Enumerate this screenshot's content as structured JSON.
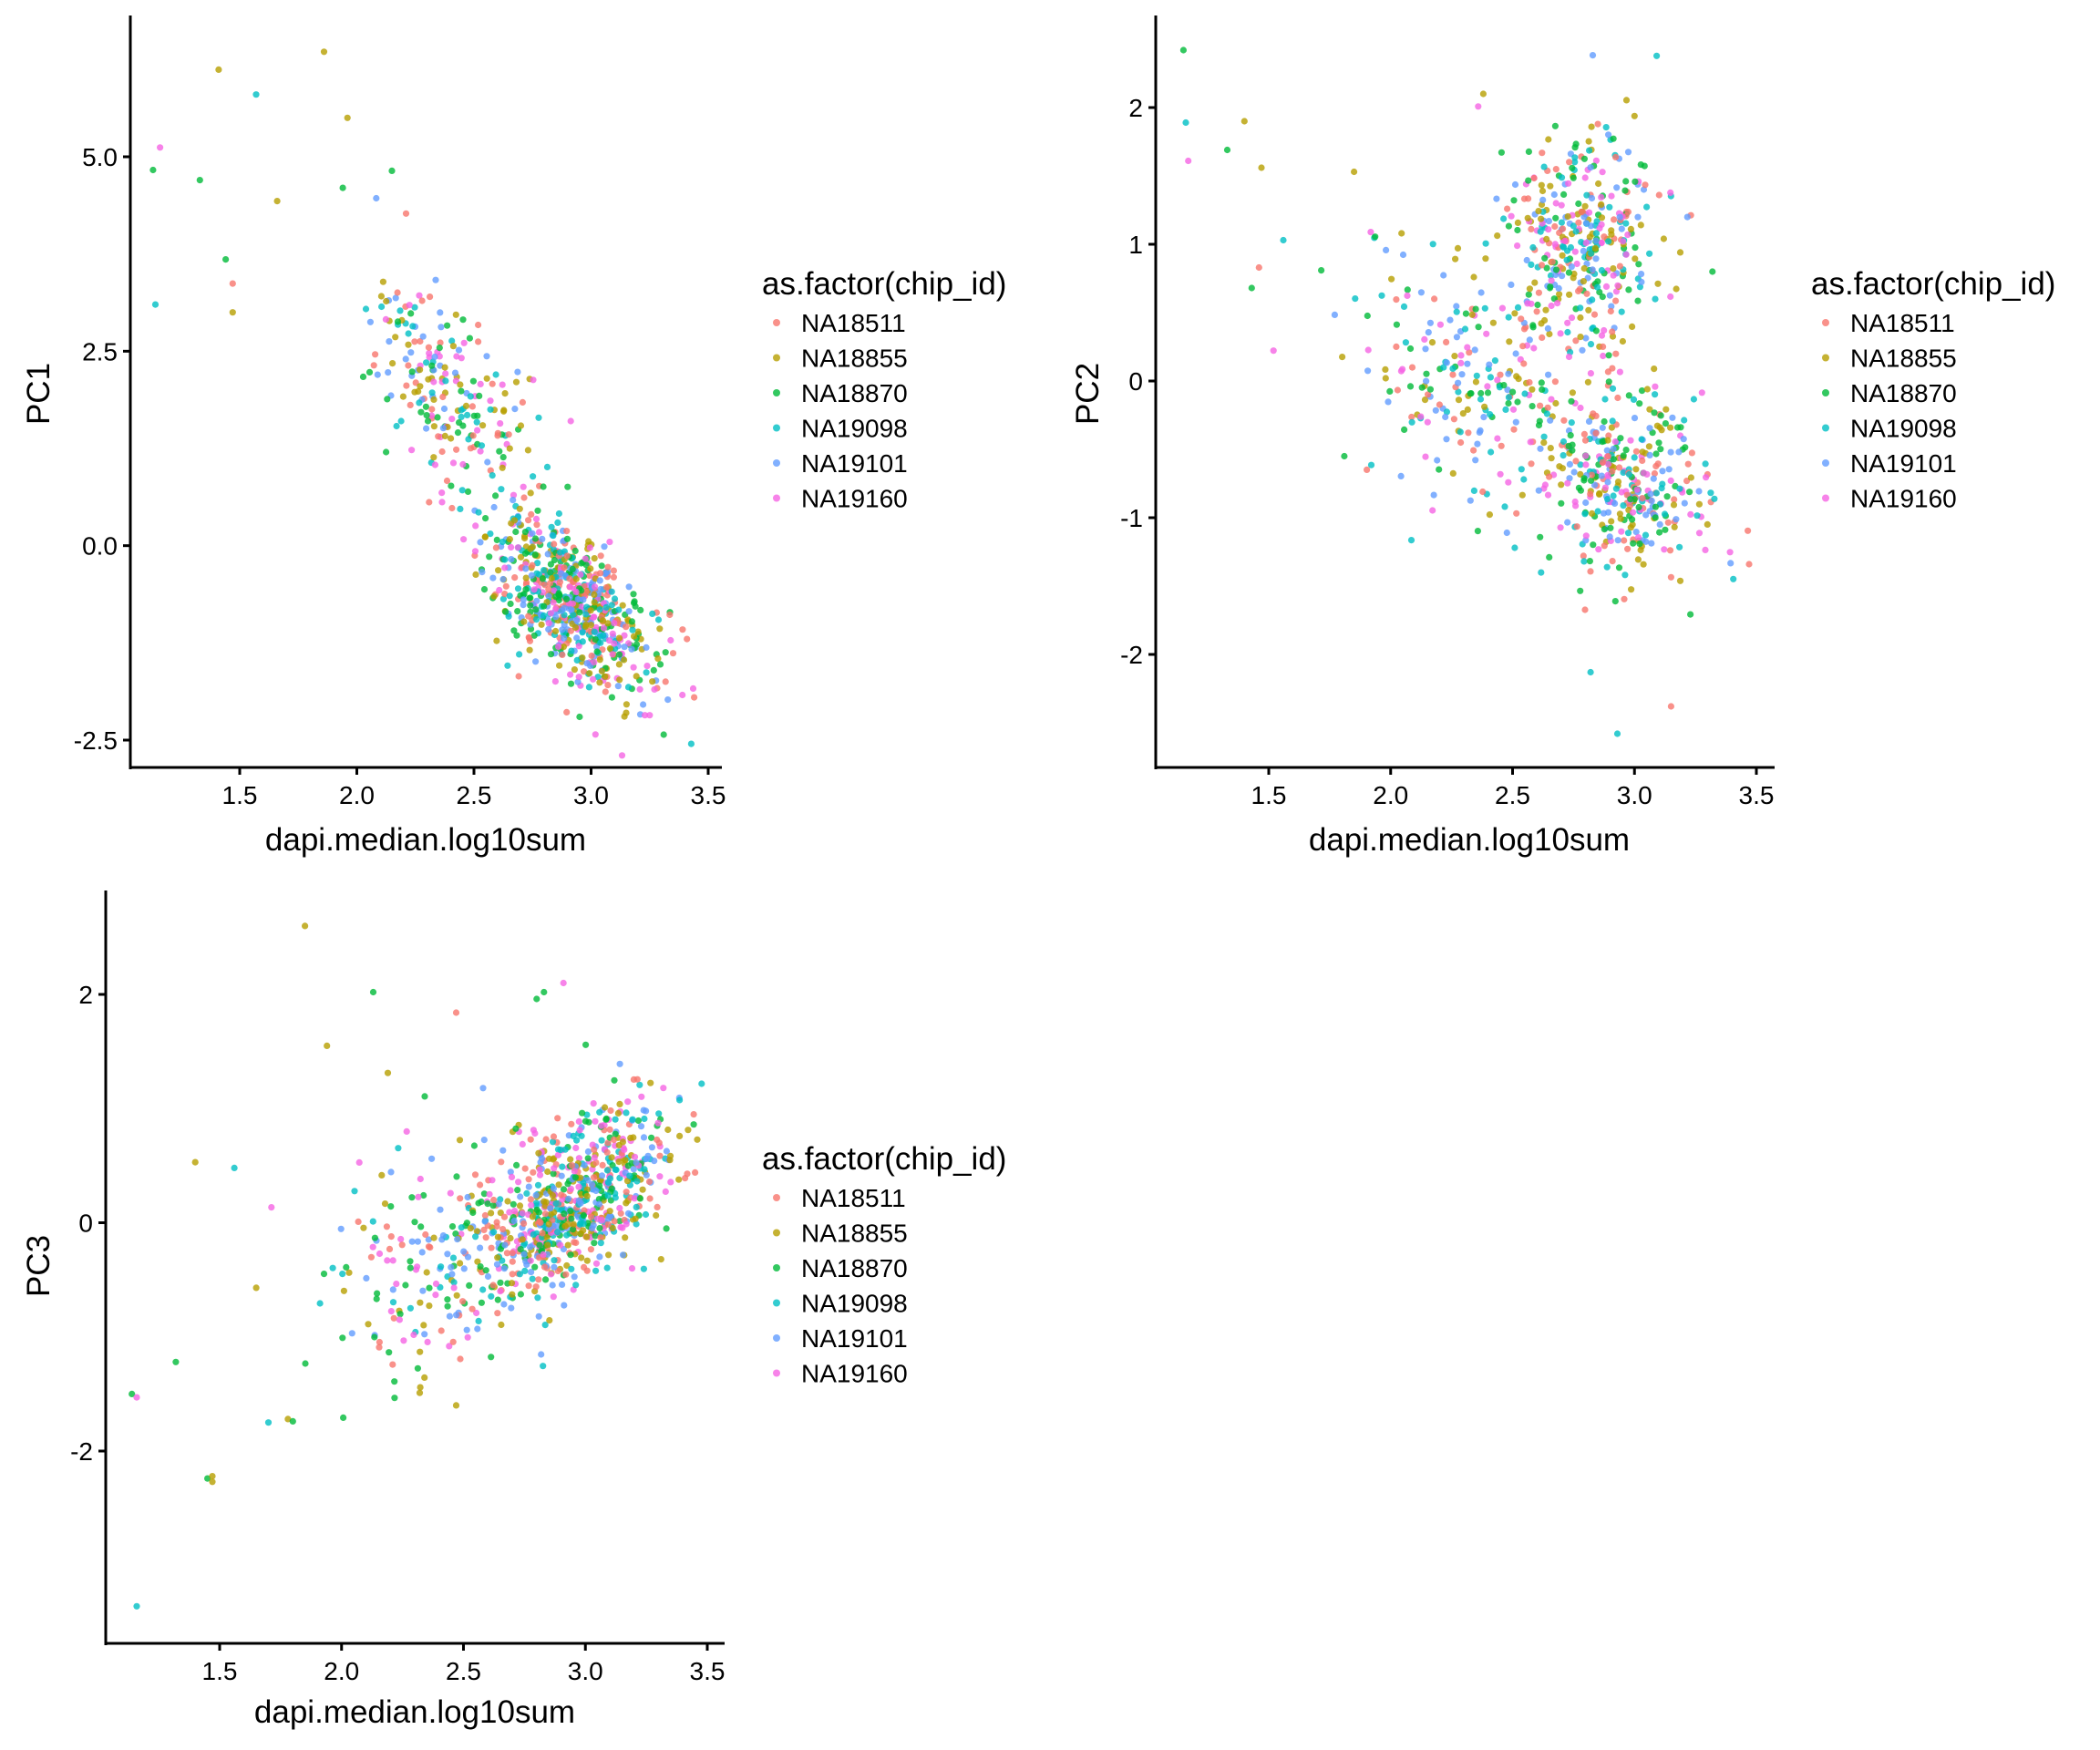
{
  "chart_data": [
    {
      "type": "scatter",
      "panel": "PC1",
      "title": "",
      "xlabel": "dapi.median.log10sum",
      "ylabel": "PC1",
      "xlim": [
        1.07,
        3.58
      ],
      "ylim": [
        -3.0,
        6.6
      ],
      "xticks": [
        "1.5",
        "2.0",
        "2.5",
        "3.0",
        "3.5"
      ],
      "xtick_values": [
        1.5,
        2.0,
        2.5,
        3.0,
        3.5
      ],
      "yticks": [
        "-2.5",
        "0.0",
        "2.5",
        "5.0"
      ],
      "ytick_values": [
        -2.5,
        0.0,
        2.5,
        5.0
      ],
      "grid": false,
      "legend": {
        "title": "as.factor(chip_id)",
        "placement": "right",
        "entries": [
          "NA18511",
          "NA18855",
          "NA18870",
          "NA19098",
          "NA19101",
          "NA19160"
        ]
      },
      "outliers": [
        {
          "x": 1.86,
          "y": 6.35,
          "group": "NA18855"
        },
        {
          "x": 1.41,
          "y": 6.12,
          "group": "NA18855"
        },
        {
          "x": 1.57,
          "y": 5.8,
          "group": "NA19098"
        },
        {
          "x": 1.96,
          "y": 5.5,
          "group": "NA18855"
        },
        {
          "x": 1.16,
          "y": 5.12,
          "group": "NA19160"
        },
        {
          "x": 1.13,
          "y": 4.83,
          "group": "NA18870"
        },
        {
          "x": 1.33,
          "y": 4.7,
          "group": "NA18870"
        },
        {
          "x": 1.66,
          "y": 4.43,
          "group": "NA18855"
        },
        {
          "x": 1.94,
          "y": 4.6,
          "group": "NA18870"
        },
        {
          "x": 2.15,
          "y": 4.82,
          "group": "NA18870"
        },
        {
          "x": 1.44,
          "y": 3.68,
          "group": "NA18870"
        },
        {
          "x": 1.47,
          "y": 3.37,
          "group": "NA18511"
        },
        {
          "x": 1.14,
          "y": 3.1,
          "group": "NA19098"
        },
        {
          "x": 1.47,
          "y": 3.0,
          "group": "NA18855"
        },
        {
          "x": 2.21,
          "y": 4.27,
          "group": "NA18511"
        },
        {
          "x": 3.15,
          "y": -2.15,
          "group": "NA18855"
        },
        {
          "x": 3.23,
          "y": -2.18,
          "group": "NA19160"
        },
        {
          "x": 3.25,
          "y": -2.18,
          "group": "NA19160"
        },
        {
          "x": 3.31,
          "y": -2.43,
          "group": "NA18870"
        },
        {
          "x": 3.44,
          "y": -1.95,
          "group": "NA18511"
        },
        {
          "x": 3.39,
          "y": -1.92,
          "group": "NA19160"
        }
      ],
      "clusters": [
        {
          "cx": 2.9,
          "cy": -0.7,
          "sx": 0.18,
          "sy": 0.55,
          "rho": -0.55,
          "n": 700
        },
        {
          "cx": 2.4,
          "cy": 2.0,
          "sx": 0.2,
          "sy": 0.75,
          "rho": -0.6,
          "n": 220
        }
      ]
    },
    {
      "type": "scatter",
      "panel": "PC2",
      "title": "",
      "xlabel": "dapi.median.log10sum",
      "ylabel": "PC2",
      "xlim": [
        1.07,
        3.58
      ],
      "ylim": [
        -2.85,
        2.6
      ],
      "xticks": [
        "1.5",
        "2.0",
        "2.5",
        "3.0",
        "3.5"
      ],
      "xtick_values": [
        1.5,
        2.0,
        2.5,
        3.0,
        3.5
      ],
      "yticks": [
        "-2",
        "-1",
        "0",
        "1",
        "2"
      ],
      "ytick_values": [
        -2,
        -1,
        0,
        1,
        2
      ],
      "grid": false,
      "legend": {
        "title": "as.factor(chip_id)",
        "placement": "right",
        "entries": [
          "NA18511",
          "NA18855",
          "NA18870",
          "NA19098",
          "NA19101",
          "NA19160"
        ]
      },
      "outliers": [
        {
          "x": 1.15,
          "y": 2.42,
          "group": "NA18870"
        },
        {
          "x": 1.16,
          "y": 1.89,
          "group": "NA19098"
        },
        {
          "x": 1.17,
          "y": 1.61,
          "group": "NA19160"
        },
        {
          "x": 1.33,
          "y": 1.69,
          "group": "NA18870"
        },
        {
          "x": 1.4,
          "y": 1.9,
          "group": "NA18855"
        },
        {
          "x": 1.47,
          "y": 1.56,
          "group": "NA18855"
        },
        {
          "x": 1.56,
          "y": 1.03,
          "group": "NA19098"
        },
        {
          "x": 1.46,
          "y": 0.83,
          "group": "NA18511"
        },
        {
          "x": 1.43,
          "y": 0.68,
          "group": "NA18870"
        },
        {
          "x": 1.85,
          "y": 1.53,
          "group": "NA18855"
        },
        {
          "x": 2.38,
          "y": 2.1,
          "group": "NA18855"
        },
        {
          "x": 2.93,
          "y": -2.58,
          "group": "NA19098"
        },
        {
          "x": 3.15,
          "y": -2.38,
          "group": "NA18511"
        },
        {
          "x": 2.82,
          "y": -2.13,
          "group": "NA19098"
        },
        {
          "x": 3.32,
          "y": 0.8,
          "group": "NA18870"
        },
        {
          "x": 3.47,
          "y": -1.34,
          "group": "NA18511"
        },
        {
          "x": 1.81,
          "y": -0.55,
          "group": "NA18870"
        }
      ],
      "clusters": [
        {
          "cx": 2.8,
          "cy": 1.0,
          "sx": 0.15,
          "sy": 0.42,
          "rho": 0.0,
          "n": 380
        },
        {
          "cx": 2.95,
          "cy": -0.75,
          "sx": 0.18,
          "sy": 0.35,
          "rho": -0.2,
          "n": 380
        },
        {
          "cx": 2.35,
          "cy": 0.0,
          "sx": 0.25,
          "sy": 0.5,
          "rho": -0.2,
          "n": 220
        }
      ]
    },
    {
      "type": "scatter",
      "panel": "PC3",
      "title": "",
      "xlabel": "dapi.median.log10sum",
      "ylabel": "PC3",
      "xlim": [
        1.07,
        3.58
      ],
      "ylim": [
        -3.55,
        2.85
      ],
      "xticks": [
        "1.5",
        "2.0",
        "2.5",
        "3.0",
        "3.5"
      ],
      "xtick_values": [
        1.5,
        2.0,
        2.5,
        3.0,
        3.5
      ],
      "yticks": [
        "-2",
        "0",
        "2"
      ],
      "ytick_values": [
        -2,
        0,
        2
      ],
      "grid": false,
      "legend": {
        "title": "as.factor(chip_id)",
        "placement": "right",
        "entries": [
          "NA18511",
          "NA18855",
          "NA18870",
          "NA19098",
          "NA19101",
          "NA19160"
        ]
      },
      "outliers": [
        {
          "x": 1.85,
          "y": 2.6,
          "group": "NA18855"
        },
        {
          "x": 2.13,
          "y": 2.02,
          "group": "NA18870"
        },
        {
          "x": 2.8,
          "y": 1.96,
          "group": "NA18870"
        },
        {
          "x": 2.83,
          "y": 2.02,
          "group": "NA18870"
        },
        {
          "x": 2.91,
          "y": 2.1,
          "group": "NA19160"
        },
        {
          "x": 1.94,
          "y": 1.55,
          "group": "NA18855"
        },
        {
          "x": 2.47,
          "y": 1.84,
          "group": "NA18511"
        },
        {
          "x": 1.4,
          "y": 0.53,
          "group": "NA18855"
        },
        {
          "x": 1.56,
          "y": 0.48,
          "group": "NA19098"
        },
        {
          "x": 1.65,
          "y": -0.57,
          "group": "NA18855"
        },
        {
          "x": 1.32,
          "y": -1.22,
          "group": "NA18870"
        },
        {
          "x": 1.14,
          "y": -1.5,
          "group": "NA18870"
        },
        {
          "x": 1.16,
          "y": -1.53,
          "group": "NA19160"
        },
        {
          "x": 1.45,
          "y": -2.24,
          "group": "NA18870"
        },
        {
          "x": 1.47,
          "y": -2.27,
          "group": "NA18855"
        },
        {
          "x": 1.47,
          "y": -2.22,
          "group": "NA18855"
        },
        {
          "x": 1.16,
          "y": -3.36,
          "group": "NA19098"
        },
        {
          "x": 1.7,
          "y": -1.75,
          "group": "NA19098"
        },
        {
          "x": 1.78,
          "y": -1.72,
          "group": "NA18855"
        },
        {
          "x": 1.8,
          "y": -1.74,
          "group": "NA18870"
        },
        {
          "x": 2.47,
          "y": -1.6,
          "group": "NA18855"
        },
        {
          "x": 3.32,
          "y": 1.18,
          "group": "NA19160"
        },
        {
          "x": 3.45,
          "y": 0.44,
          "group": "NA18511"
        }
      ],
      "clusters": [
        {
          "cx": 2.95,
          "cy": 0.15,
          "sx": 0.2,
          "sy": 0.42,
          "rho": 0.55,
          "n": 720
        },
        {
          "cx": 2.45,
          "cy": -0.3,
          "sx": 0.25,
          "sy": 0.6,
          "rho": 0.4,
          "n": 220
        }
      ]
    }
  ],
  "series": [
    {
      "name": "NA18511",
      "color": "#F8766D"
    },
    {
      "name": "NA18855",
      "color": "#B79F00"
    },
    {
      "name": "NA18870",
      "color": "#00BA38"
    },
    {
      "name": "NA19098",
      "color": "#00BFC4"
    },
    {
      "name": "NA19101",
      "color": "#619CFF"
    },
    {
      "name": "NA19160",
      "color": "#F564E3"
    }
  ]
}
